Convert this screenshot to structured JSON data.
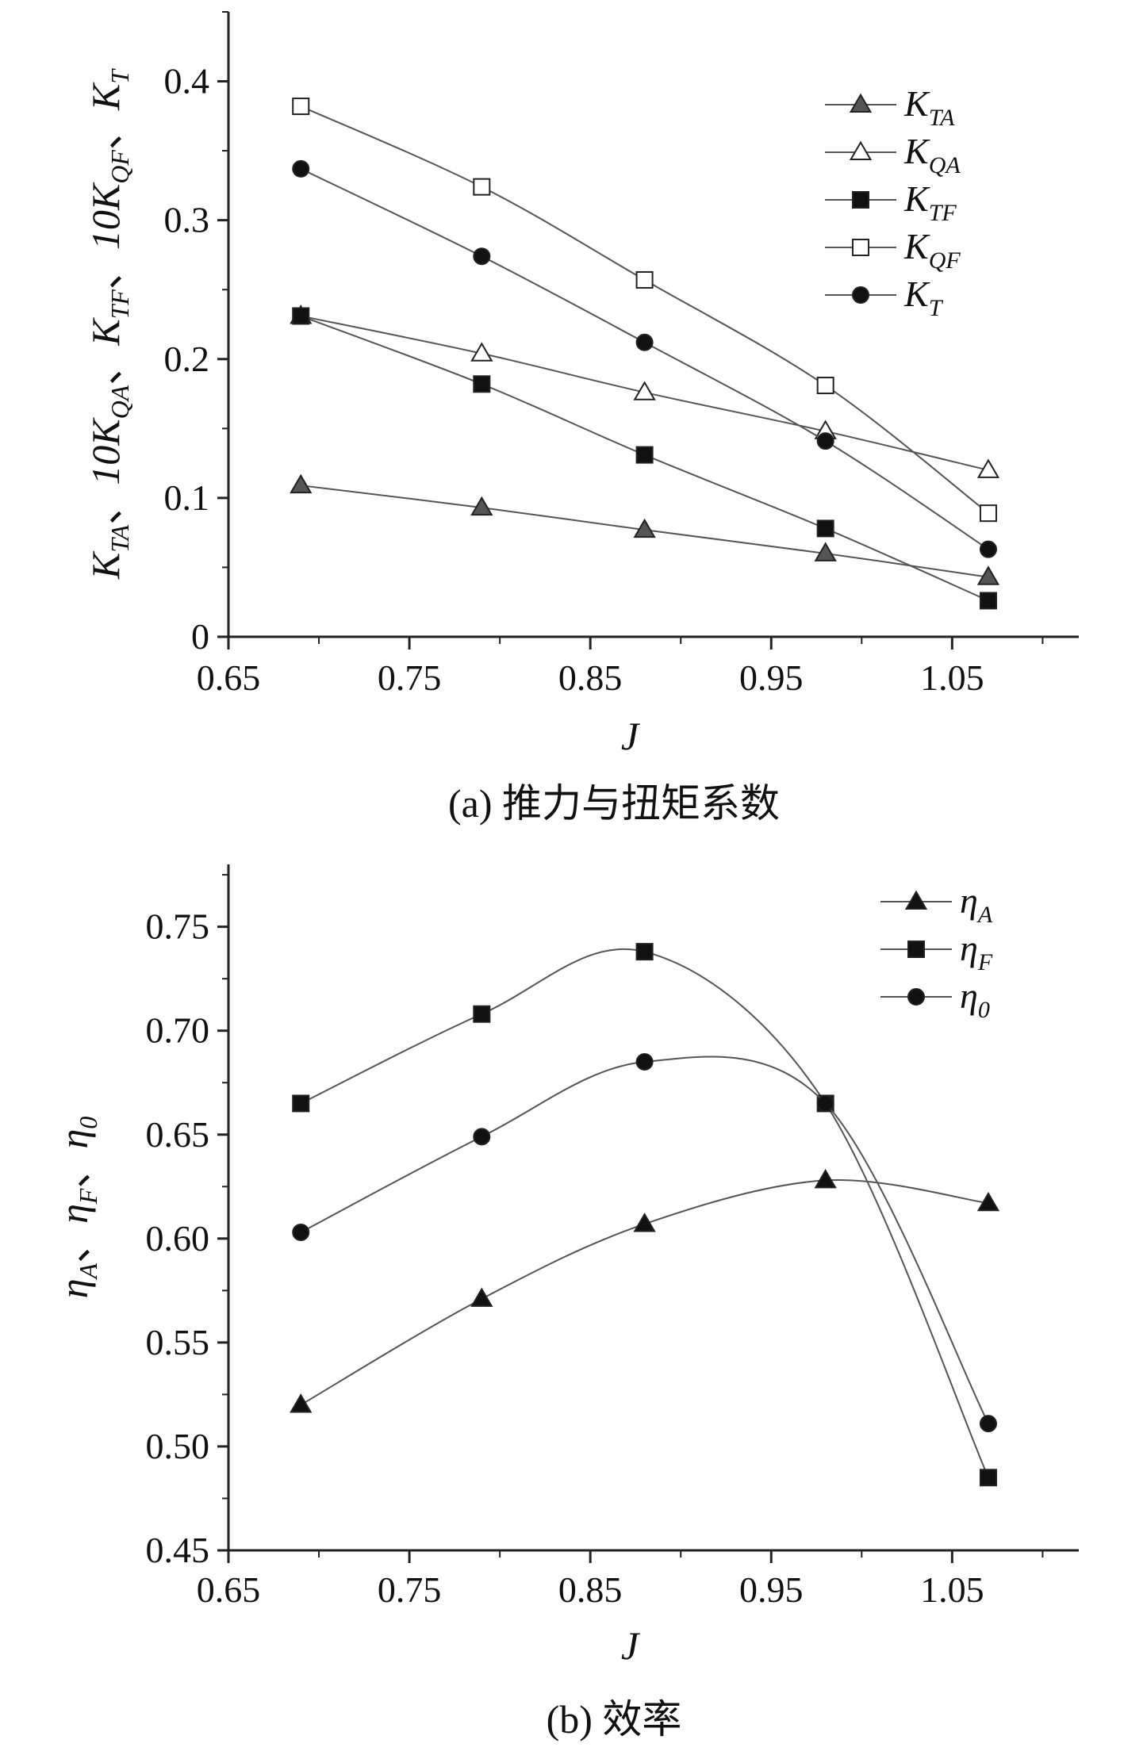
{
  "chart_data": [
    {
      "type": "line",
      "title": "",
      "caption": "(a) 推力与扭矩系数",
      "xlabel": "J",
      "ylabel": "K_TA、10K_QA、K_TF、10K_QF、K_T",
      "ylabel_parts": [
        {
          "main": "K",
          "sub": "TA",
          "sep": "、"
        },
        {
          "main": "10K",
          "sub": "QA",
          "sep": "、"
        },
        {
          "main": "K",
          "sub": "TF",
          "sep": "、"
        },
        {
          "main": "10K",
          "sub": "QF",
          "sep": "、"
        },
        {
          "main": "K",
          "sub": "T",
          "sep": ""
        }
      ],
      "xlim": [
        0.65,
        1.12
      ],
      "ylim": [
        0,
        0.45
      ],
      "xticks": [
        0.65,
        0.75,
        0.85,
        0.95,
        1.05
      ],
      "xtick_labels": [
        "0.65",
        "0.75",
        "0.85",
        "0.95",
        "1.05"
      ],
      "yticks": [
        0,
        0.1,
        0.2,
        0.3,
        0.4
      ],
      "ytick_labels": [
        "0",
        "0.1",
        "0.2",
        "0.3",
        "0.4"
      ],
      "legend_position": "top-right",
      "x": [
        0.69,
        0.79,
        0.88,
        0.98,
        1.07
      ],
      "series": [
        {
          "name": "K_TA",
          "main": "K",
          "sub": "TA",
          "marker": "triangle",
          "fill": "#555555",
          "values": [
            0.109,
            0.093,
            0.077,
            0.06,
            0.043
          ]
        },
        {
          "name": "K_QA",
          "main": "K",
          "sub": "QA",
          "marker": "triangle",
          "fill": "#ffffff",
          "values": [
            0.231,
            0.204,
            0.176,
            0.148,
            0.12
          ]
        },
        {
          "name": "K_TF",
          "main": "K",
          "sub": "TF",
          "marker": "square",
          "fill": "#111111",
          "values": [
            0.231,
            0.182,
            0.131,
            0.078,
            0.026
          ]
        },
        {
          "name": "K_QF",
          "main": "K",
          "sub": "QF",
          "marker": "square",
          "fill": "#ffffff",
          "values": [
            0.382,
            0.324,
            0.257,
            0.181,
            0.089
          ]
        },
        {
          "name": "K_T",
          "main": "K",
          "sub": "T",
          "marker": "circle",
          "fill": "#111111",
          "values": [
            0.337,
            0.274,
            0.212,
            0.141,
            0.063
          ]
        }
      ]
    },
    {
      "type": "line",
      "title": "",
      "caption": "(b) 效率",
      "xlabel": "J",
      "ylabel": "η_A、η_F、η_0",
      "ylabel_parts": [
        {
          "main": "η",
          "sub": "A",
          "sep": "、"
        },
        {
          "main": "η",
          "sub": "F",
          "sep": "、"
        },
        {
          "main": "η",
          "sub": "0",
          "sep": ""
        }
      ],
      "xlim": [
        0.65,
        1.12
      ],
      "ylim": [
        0.45,
        0.78
      ],
      "xticks": [
        0.65,
        0.75,
        0.85,
        0.95,
        1.05
      ],
      "xtick_labels": [
        "0.65",
        "0.75",
        "0.85",
        "0.95",
        "1.05"
      ],
      "yticks": [
        0.45,
        0.5,
        0.55,
        0.6,
        0.65,
        0.7,
        0.75
      ],
      "ytick_labels": [
        "0.45",
        "0.50",
        "0.55",
        "0.60",
        "0.65",
        "0.70",
        "0.75"
      ],
      "legend_position": "top-right",
      "x": [
        0.69,
        0.79,
        0.88,
        0.98,
        1.07
      ],
      "series": [
        {
          "name": "η_A",
          "main": "η",
          "sub": "A",
          "marker": "triangle",
          "fill": "#111111",
          "values": [
            0.52,
            0.571,
            0.607,
            0.628,
            0.617
          ]
        },
        {
          "name": "η_F",
          "main": "η",
          "sub": "F",
          "marker": "square",
          "fill": "#111111",
          "values": [
            0.665,
            0.708,
            0.738,
            0.665,
            0.485
          ]
        },
        {
          "name": "η_0",
          "main": "η",
          "sub": "0",
          "marker": "circle",
          "fill": "#111111",
          "values": [
            0.603,
            0.649,
            0.685,
            0.665,
            0.511
          ]
        }
      ]
    }
  ]
}
